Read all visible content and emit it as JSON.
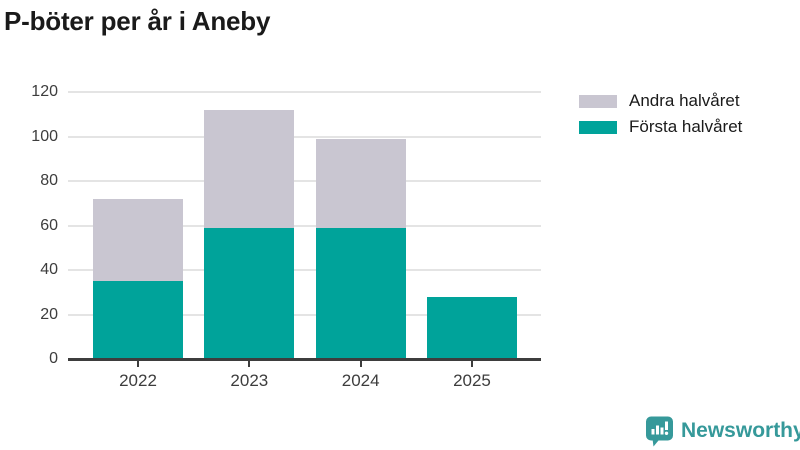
{
  "chart_data": {
    "type": "bar",
    "stacked": true,
    "title": "P-böter per år i Aneby",
    "categories": [
      "2022",
      "2023",
      "2024",
      "2025"
    ],
    "series": [
      {
        "name": "Första halvåret",
        "color": "#00a39a",
        "values": [
          35,
          59,
          59,
          28
        ]
      },
      {
        "name": "Andra halvåret",
        "color": "#c9c6d1",
        "values": [
          37,
          53,
          40,
          0
        ]
      }
    ],
    "ylim": [
      0,
      120
    ],
    "yticks": [
      0,
      20,
      40,
      60,
      80,
      100,
      120
    ],
    "xlabel": "",
    "ylabel": "",
    "grid": true,
    "legend_position": "top-right",
    "legend_order": [
      "Andra halvåret",
      "Första halvåret"
    ]
  },
  "branding": {
    "label": "Newsworthy",
    "color": "#36999a",
    "icon": "newsworthy-bubble-chart-icon"
  },
  "colors": {
    "axis": "#3d3d3d",
    "gridline": "#e4e4e4",
    "tick_text": "#3d3d3d",
    "title_text": "#1a1a1a",
    "background": "#ffffff"
  }
}
